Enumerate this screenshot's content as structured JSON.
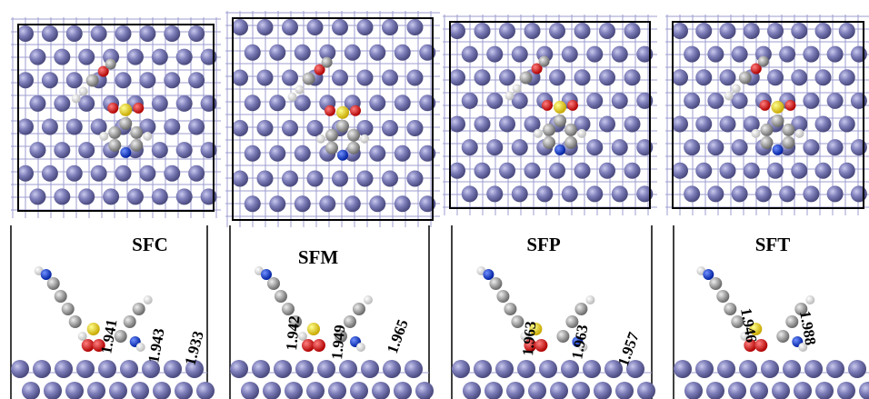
{
  "panels": [
    {
      "label": "SFC",
      "distances": [
        "1.941",
        "1.943",
        "1.933"
      ]
    },
    {
      "label": "SFM",
      "distances": [
        "1.942",
        "1.949",
        "1.965"
      ]
    },
    {
      "label": "SFP",
      "distances": [
        "1.963",
        "1.963",
        "1.957"
      ]
    },
    {
      "label": "SFT",
      "distances": [
        "1.946",
        "1.988"
      ]
    }
  ]
}
